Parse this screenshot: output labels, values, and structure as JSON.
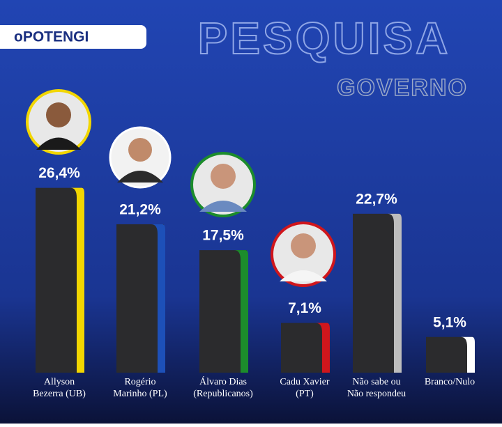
{
  "logo": "oPOTENGI",
  "chart_data": {
    "type": "bar",
    "title": "PESQUISA",
    "subtitle": "GOVERNO",
    "categories": [
      [
        "Allyson",
        "Bezerra (UB)"
      ],
      [
        "Rogério",
        "Marinho (PL)"
      ],
      [
        "Álvaro Dias",
        "(Republicanos)"
      ],
      [
        "Cadu Xavier",
        "(PT)"
      ],
      [
        "Não sabe ou",
        "Não respondeu"
      ],
      [
        "Branco/Nulo"
      ]
    ],
    "values": [
      26.4,
      21.2,
      17.5,
      7.1,
      22.7,
      5.1
    ],
    "value_labels": [
      "26,4%",
      "21,2%",
      "17,5%",
      "7,1%",
      "22,7%",
      "5,1%"
    ],
    "colors": [
      "#f2d600",
      "#1d50b8",
      "#1c8c2c",
      "#d0161c",
      "#bdbdbd",
      "#ffffff"
    ]
  }
}
